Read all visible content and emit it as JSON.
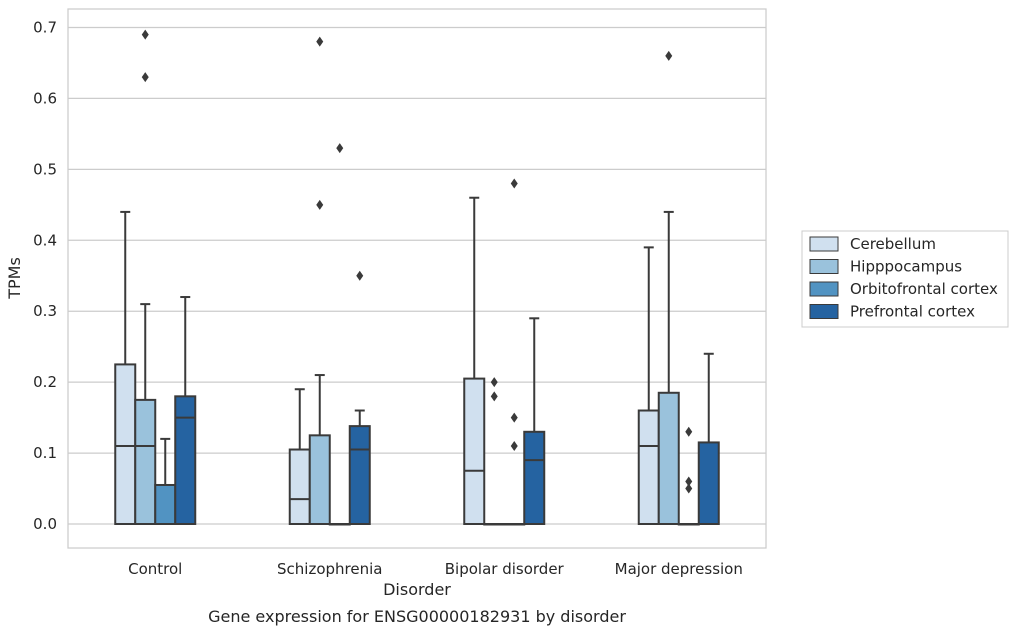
{
  "caption": "Gene expression for ENSG00000182931 by disorder",
  "chart_data": {
    "type": "boxplot",
    "xlabel": "Disorder",
    "ylabel": "TPMs",
    "ylim": [
      -0.035,
      0.725
    ],
    "yticks": [
      0.0,
      0.1,
      0.2,
      0.3,
      0.4,
      0.5,
      0.6,
      0.7
    ],
    "ytick_labels": [
      "0.0",
      "0.1",
      "0.2",
      "0.3",
      "0.4",
      "0.5",
      "0.6",
      "0.7"
    ],
    "grid": "horizontal",
    "legend_position": "right",
    "categories": [
      "Control",
      "Schizophrenia",
      "Bipolar disorder",
      "Major depression"
    ],
    "series": [
      {
        "name": "Cerebellum",
        "color": "#d0e0ef",
        "boxes": [
          {
            "min": 0.0,
            "q1": 0.0,
            "median": 0.11,
            "q3": 0.225,
            "max": 0.44,
            "outliers": []
          },
          {
            "min": 0.0,
            "q1": 0.0,
            "median": 0.035,
            "q3": 0.105,
            "max": 0.19,
            "outliers": []
          },
          {
            "min": 0.0,
            "q1": 0.0,
            "median": 0.075,
            "q3": 0.205,
            "max": 0.46,
            "outliers": []
          },
          {
            "min": 0.0,
            "q1": 0.0,
            "median": 0.11,
            "q3": 0.16,
            "max": 0.39,
            "outliers": []
          }
        ]
      },
      {
        "name": "Hipppocampus",
        "color": "#9ac2dc",
        "boxes": [
          {
            "min": 0.0,
            "q1": 0.0,
            "median": 0.11,
            "q3": 0.175,
            "max": 0.31,
            "outliers": [
              0.63,
              0.69
            ]
          },
          {
            "min": 0.0,
            "q1": 0.0,
            "median": 0.0,
            "q3": 0.125,
            "max": 0.21,
            "outliers": [
              0.45,
              0.68
            ]
          },
          {
            "min": 0.0,
            "q1": 0.0,
            "median": 0.0,
            "q3": 0.0,
            "max": 0.0,
            "outliers": [
              0.18,
              0.2
            ]
          },
          {
            "min": 0.0,
            "q1": 0.0,
            "median": 0.0,
            "q3": 0.185,
            "max": 0.44,
            "outliers": [
              0.66
            ]
          }
        ]
      },
      {
        "name": "Orbitofrontal cortex",
        "color": "#5193c2",
        "boxes": [
          {
            "min": 0.0,
            "q1": 0.0,
            "median": 0.0,
            "q3": 0.055,
            "max": 0.12,
            "outliers": []
          },
          {
            "min": 0.0,
            "q1": 0.0,
            "median": 0.0,
            "q3": 0.0,
            "max": 0.0,
            "outliers": [
              0.53
            ]
          },
          {
            "min": 0.0,
            "q1": 0.0,
            "median": 0.0,
            "q3": 0.0,
            "max": 0.0,
            "outliers": [
              0.11,
              0.15,
              0.48
            ]
          },
          {
            "min": 0.0,
            "q1": 0.0,
            "median": 0.0,
            "q3": 0.0,
            "max": 0.0,
            "outliers": [
              0.05,
              0.06,
              0.13
            ]
          }
        ]
      },
      {
        "name": "Prefrontal cortex",
        "color": "#2563a1",
        "boxes": [
          {
            "min": 0.0,
            "q1": 0.0,
            "median": 0.15,
            "q3": 0.18,
            "max": 0.32,
            "outliers": []
          },
          {
            "min": 0.0,
            "q1": 0.0,
            "median": 0.105,
            "q3": 0.138,
            "max": 0.16,
            "outliers": [
              0.35
            ]
          },
          {
            "min": 0.0,
            "q1": 0.0,
            "median": 0.09,
            "q3": 0.13,
            "max": 0.29,
            "outliers": []
          },
          {
            "min": 0.0,
            "q1": 0.0,
            "median": 0.0,
            "q3": 0.115,
            "max": 0.24,
            "outliers": []
          }
        ]
      }
    ]
  }
}
